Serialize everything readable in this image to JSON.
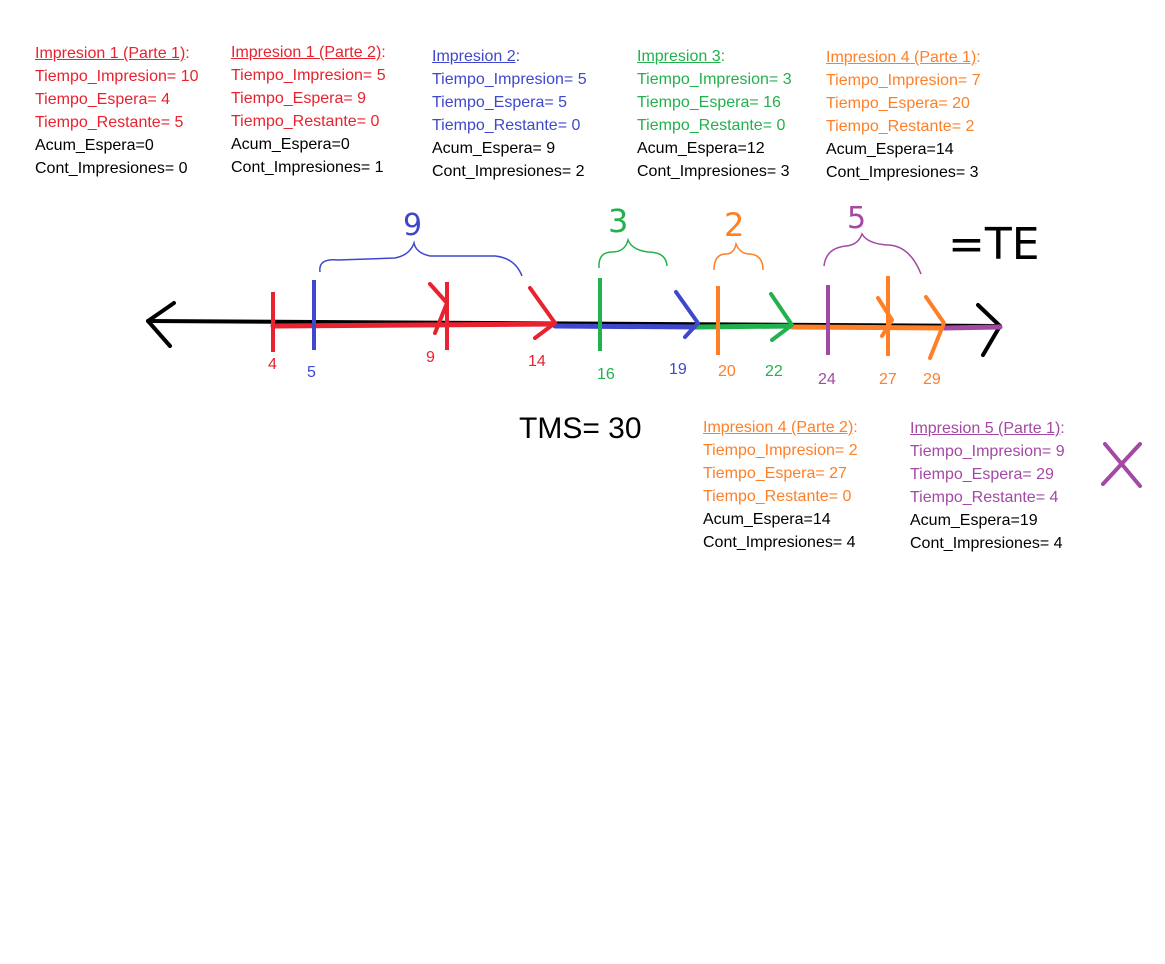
{
  "blocks": [
    {
      "id": "imp1p1",
      "color": "#e8222f",
      "title": "Impresion 1 (Parte 1)",
      "colon": ":",
      "tiempo_impresion": "Tiempo_Impresion= 10",
      "tiempo_espera": "Tiempo_Espera= 4",
      "tiempo_restante": "Tiempo_Restante= 5",
      "acum_espera": "Acum_Espera=0",
      "cont_impresiones": "Cont_Impresiones= 0"
    },
    {
      "id": "imp1p2",
      "color": "#e8222f",
      "title": "Impresion 1 (Parte 2)",
      "colon": ":",
      "tiempo_impresion": "Tiempo_Impresion= 5",
      "tiempo_espera": "Tiempo_Espera= 9",
      "tiempo_restante": "Tiempo_Restante= 0",
      "acum_espera": "Acum_Espera=0",
      "cont_impresiones": "Cont_Impresiones= 1"
    },
    {
      "id": "imp2",
      "color": "#3f48cc",
      "title": "Impresion 2",
      "colon": ":",
      "tiempo_impresion": "Tiempo_Impresion= 5",
      "tiempo_espera": "Tiempo_Espera= 5",
      "tiempo_restante": "Tiempo_Restante= 0",
      "acum_espera": "Acum_Espera= 9",
      "cont_impresiones": "Cont_Impresiones= 2"
    },
    {
      "id": "imp3",
      "color": "#22b14c",
      "title": "Impresion 3",
      "colon": ":",
      "tiempo_impresion": "Tiempo_Impresion= 3",
      "tiempo_espera": "Tiempo_Espera= 16",
      "tiempo_restante": "Tiempo_Restante= 0",
      "acum_espera": "Acum_Espera=12",
      "cont_impresiones": "Cont_Impresiones= 3"
    },
    {
      "id": "imp4p1",
      "color": "#ff7f27",
      "title": "Impresion 4 (Parte 1)",
      "colon": ":",
      "tiempo_impresion": "Tiempo_Impresion= 7",
      "tiempo_espera": "Tiempo_Espera= 20",
      "tiempo_restante": "Tiempo_Restante= 2",
      "acum_espera": "Acum_Espera=14",
      "cont_impresiones": "Cont_Impresiones= 3"
    },
    {
      "id": "imp4p2",
      "color": "#ff7f27",
      "title": "Impresion 4 (Parte 2)",
      "colon": ":",
      "tiempo_impresion": "Tiempo_Impresion= 2",
      "tiempo_espera": "Tiempo_Espera= 27",
      "tiempo_restante": "Tiempo_Restante= 0",
      "acum_espera": "Acum_Espera=14",
      "cont_impresiones": "Cont_Impresiones= 4"
    },
    {
      "id": "imp5p1",
      "color": "#a349a4",
      "title": "Impresion 5 (Parte 1)",
      "colon": ":",
      "tiempo_impresion": "Tiempo_Impresion= 9",
      "tiempo_espera": "Tiempo_Espera= 29",
      "tiempo_restante": "Tiempo_Restante= 4",
      "acum_espera": "Acum_Espera=19",
      "cont_impresiones": "Cont_Impresiones= 4"
    }
  ],
  "timeline": {
    "ticks": [
      {
        "label": "4",
        "color": "#e8222f"
      },
      {
        "label": "5",
        "color": "#3f48cc"
      },
      {
        "label": "9",
        "color": "#e8222f"
      },
      {
        "label": "14",
        "color": "#e8222f"
      },
      {
        "label": "16",
        "color": "#22b14c"
      },
      {
        "label": "19",
        "color": "#3f48cc"
      },
      {
        "label": "20",
        "color": "#ff7f27"
      },
      {
        "label": "22",
        "color": "#22b14c"
      },
      {
        "label": "24",
        "color": "#a349a4"
      },
      {
        "label": "27",
        "color": "#ff7f27"
      },
      {
        "label": "29",
        "color": "#ff7f27"
      }
    ],
    "braces": [
      {
        "label": "9",
        "color": "#3f48cc"
      },
      {
        "label": "3",
        "color": "#22b14c"
      },
      {
        "label": "2",
        "color": "#ff7f27"
      },
      {
        "label": "5",
        "color": "#a349a4"
      }
    ],
    "equals_label": "=TE"
  },
  "tms": "TMS= 30",
  "colors": {
    "red": "#e8222f",
    "blue": "#3f48cc",
    "green": "#22b14c",
    "orange": "#ff7f27",
    "purple": "#a349a4",
    "axis": "#000000"
  }
}
